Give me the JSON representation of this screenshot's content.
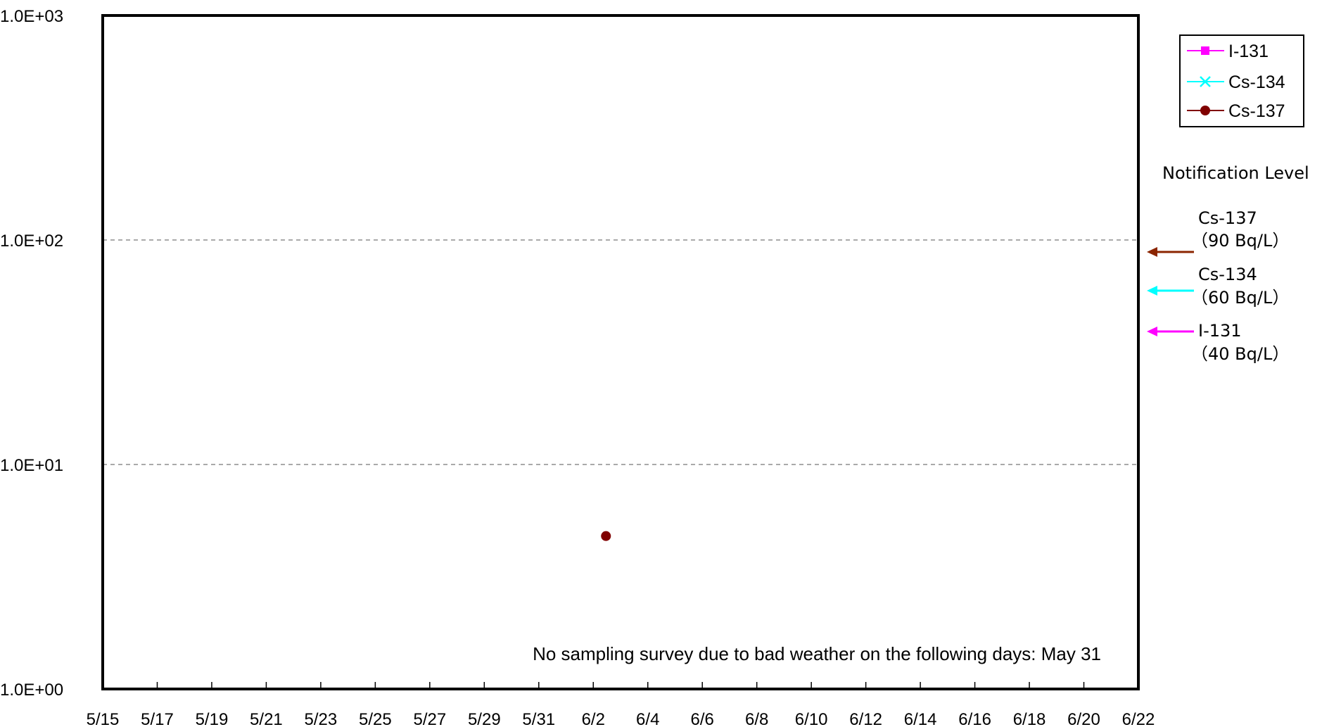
{
  "chart_data": {
    "type": "scatter",
    "y_scale": "log",
    "ylim": [
      1,
      1000
    ],
    "y_ticks": [
      1,
      10,
      100,
      1000
    ],
    "y_tick_labels": [
      "1.0E+00",
      "1.0E+01",
      "1.0E+02",
      "1.0E+03"
    ],
    "x_tick_labels": [
      "5/15",
      "5/17",
      "5/19",
      "5/21",
      "5/23",
      "5/25",
      "5/27",
      "5/29",
      "5/31",
      "6/2",
      "6/4",
      "6/6",
      "6/8",
      "6/10",
      "6/12",
      "6/14",
      "6/16",
      "6/18",
      "6/20",
      "6/22"
    ],
    "grid": "horizontal dashed at 1.0E+01 and 1.0E+02",
    "series": [
      {
        "name": "I-131",
        "color": "#ff00ff",
        "marker": "square",
        "points": []
      },
      {
        "name": "Cs-134",
        "color": "#00ffff",
        "marker": "x",
        "points": []
      },
      {
        "name": "Cs-137",
        "color": "#800000",
        "marker": "circle",
        "points": [
          {
            "x": "6/2",
            "y": 4.8
          }
        ]
      }
    ],
    "legend": {
      "placement": "top-right",
      "entries": [
        {
          "label": "I-131",
          "color": "#ff00ff",
          "marker": "square"
        },
        {
          "label": "Cs-134",
          "color": "#00ffff",
          "marker": "x"
        },
        {
          "label": "Cs-137",
          "color": "#800000",
          "marker": "circle"
        }
      ]
    },
    "notification": {
      "title": "Notification Level",
      "levels": [
        {
          "nuclide": "Cs-137",
          "value": 90,
          "value_label": "（90  Bq/L）",
          "color": "#8b2500"
        },
        {
          "nuclide": "Cs-134",
          "value": 60,
          "value_label": "（60  Bq/L）",
          "color": "#00ffff"
        },
        {
          "nuclide": "I-131",
          "value": 40,
          "value_label": "（40  Bq/L）",
          "color": "#ff00ff"
        }
      ]
    },
    "annotation": "No sampling survey due to bad weather on the following days: May 31"
  }
}
